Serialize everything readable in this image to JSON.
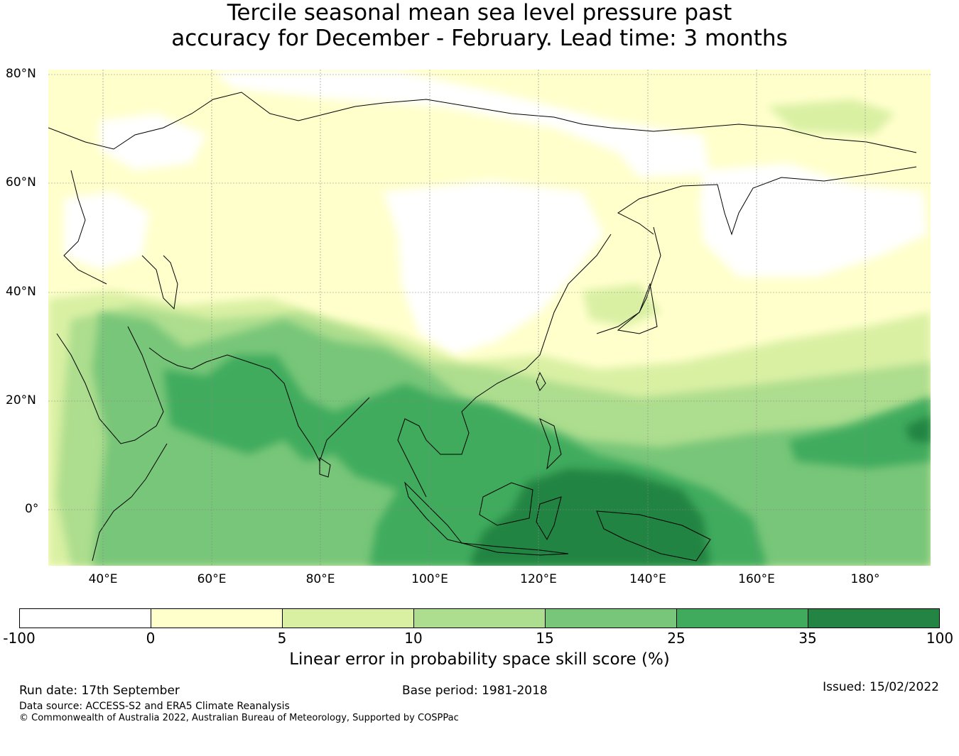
{
  "title": {
    "line1": "Tercile seasonal mean sea level pressure past",
    "line2": "accuracy for December - February. Lead time: 3 months"
  },
  "map": {
    "lat_labels": [
      "80°N",
      "60°N",
      "40°N",
      "20°N",
      "0°"
    ],
    "lon_labels": [
      "40°E",
      "60°E",
      "80°E",
      "100°E",
      "120°E",
      "140°E",
      "160°E",
      "180°"
    ],
    "lat_values": [
      80,
      60,
      40,
      20,
      0
    ],
    "lon_values": [
      40,
      60,
      80,
      100,
      120,
      140,
      160,
      180
    ],
    "extent": {
      "lon_min": 30,
      "lon_max": 192,
      "lat_min": -10,
      "lat_max": 81
    }
  },
  "colorbar": {
    "ticks": [
      "-100",
      "0",
      "5",
      "10",
      "15",
      "25",
      "35",
      "100"
    ],
    "colors": [
      "#ffffff",
      "#ffffcc",
      "#d9f0a3",
      "#addd8e",
      "#78c679",
      "#41ab5d",
      "#238443"
    ],
    "label": "Linear error in probability space skill score (%)"
  },
  "footer": {
    "run_date": "Run date: 17th September",
    "base_period": "Base period: 1981-2018",
    "issued": "Issued: 15/02/2022",
    "data_source": "Data source: ACCESS-S2 and ERA5 Climate Reanalysis",
    "copyright": "© Commonwealth of Australia 2022, Australian Bureau of Meteorology, Supported by COSPPac"
  }
}
